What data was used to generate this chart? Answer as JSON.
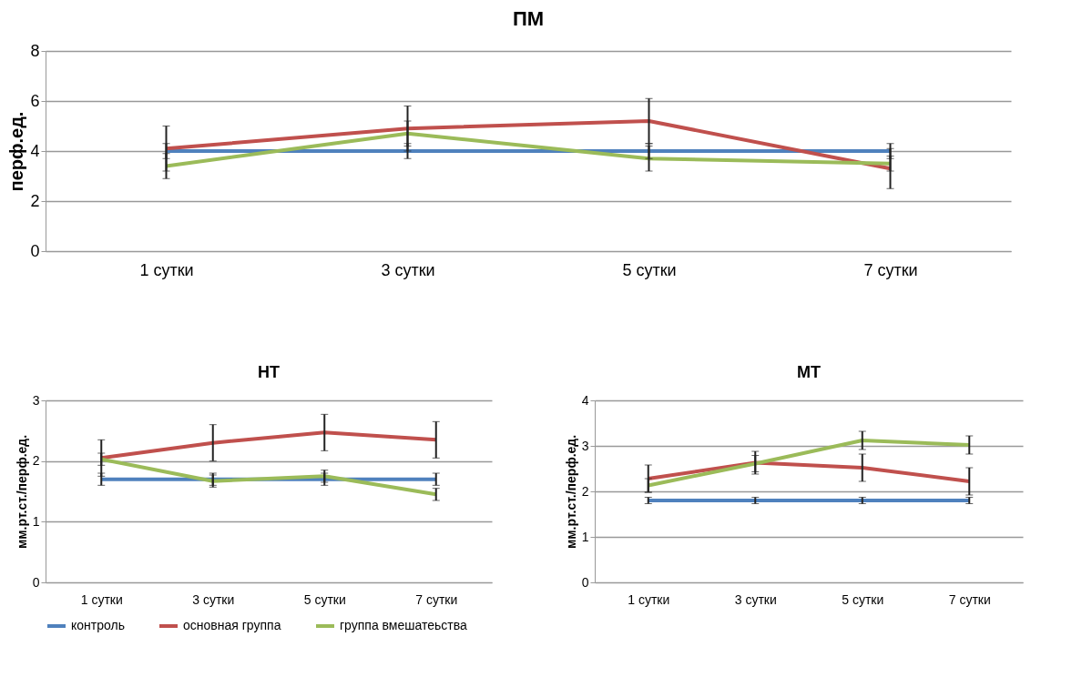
{
  "chart_data": [
    {
      "type": "line",
      "title": "ПМ",
      "ylabel": "перф.ед.",
      "categories": [
        "1 сутки",
        "3 сутки",
        "5 сутки",
        "7 сутки"
      ],
      "ylim": [
        0,
        8
      ],
      "yticks": [
        0,
        2,
        4,
        6,
        8
      ],
      "grid": "y",
      "legend": "bottom",
      "series": [
        {
          "name": "контроль",
          "color": "#4f81bd",
          "values": [
            4,
            4,
            4,
            4
          ],
          "errors": [
            0.3,
            0.3,
            0.3,
            0.3
          ]
        },
        {
          "name": "основная группа",
          "color": "#c0504d",
          "values": [
            4.1,
            4.9,
            5.2,
            3.3
          ],
          "errors": [
            0.9,
            0.9,
            0.9,
            0.8
          ]
        },
        {
          "name": "группа вмешатеьства",
          "color": "#9bbb59",
          "values": [
            3.4,
            4.7,
            3.7,
            3.5
          ],
          "errors": [
            0.5,
            0.5,
            0.5,
            0.3
          ]
        }
      ]
    },
    {
      "type": "line",
      "title": "НТ",
      "ylabel": "мм.рт.ст./перф.ед.",
      "categories": [
        "1 сутки",
        "3 сутки",
        "5 сутки",
        "7 сутки"
      ],
      "ylim": [
        0,
        3
      ],
      "yticks": [
        0,
        1,
        2,
        3
      ],
      "grid": "y",
      "legend": "bottom",
      "series": [
        {
          "name": "контроль",
          "color": "#4f81bd",
          "values": [
            1.7,
            1.7,
            1.7,
            1.7
          ],
          "errors": [
            0.1,
            0.1,
            0.1,
            0.1
          ]
        },
        {
          "name": "основная группа",
          "color": "#c0504d",
          "values": [
            2.05,
            2.3,
            2.47,
            2.35
          ],
          "errors": [
            0.3,
            0.3,
            0.3,
            0.3
          ]
        },
        {
          "name": "группа вмешатеьства",
          "color": "#9bbb59",
          "values": [
            2.03,
            1.67,
            1.75,
            1.45
          ],
          "errors": [
            0.1,
            0.1,
            0.1,
            0.1
          ]
        }
      ]
    },
    {
      "type": "line",
      "title": "МТ",
      "ylabel": "мм.рт.ст./перф.ед.",
      "categories": [
        "1 сутки",
        "3 сутки",
        "5 сутки",
        "7 сутки"
      ],
      "ylim": [
        0,
        4
      ],
      "yticks": [
        0,
        1,
        2,
        3,
        4
      ],
      "grid": "y",
      "legend": "bottom",
      "series": [
        {
          "name": "контроль",
          "color": "#4f81bd",
          "values": [
            1.8,
            1.8,
            1.8,
            1.8
          ],
          "errors": [
            0.07,
            0.07,
            0.07,
            0.07
          ]
        },
        {
          "name": "основная группа",
          "color": "#c0504d",
          "values": [
            2.28,
            2.63,
            2.52,
            2.22
          ],
          "errors": [
            0.3,
            0.25,
            0.3,
            0.3
          ]
        },
        {
          "name": "группа вмешатеьства",
          "color": "#9bbb59",
          "values": [
            2.13,
            2.61,
            3.12,
            3.02
          ],
          "errors": [
            0.15,
            0.18,
            0.2,
            0.2
          ]
        }
      ]
    }
  ]
}
